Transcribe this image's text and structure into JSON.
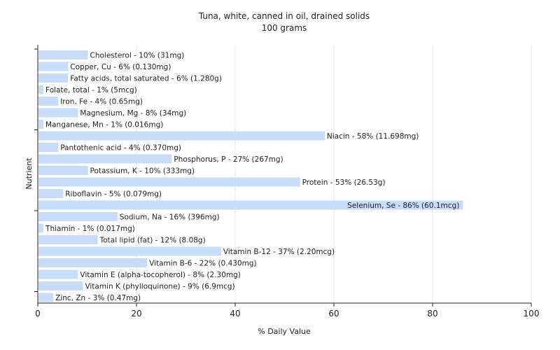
{
  "chart_data": {
    "type": "bar",
    "orientation": "horizontal",
    "title": "Tuna, white, canned in oil, drained solids",
    "subtitle": "100 grams",
    "xlabel": "% Daily Value",
    "ylabel": "Nutrient",
    "xlim": [
      0,
      100
    ],
    "xticks": [
      0,
      20,
      40,
      60,
      80,
      100
    ],
    "grid": true,
    "bar_color": "#c6dcf8",
    "categories": [
      "Cholesterol",
      "Copper, Cu",
      "Fatty acids, total saturated",
      "Folate, total",
      "Iron, Fe",
      "Magnesium, Mg",
      "Manganese, Mn",
      "Niacin",
      "Pantothenic acid",
      "Phosphorus, P",
      "Potassium, K",
      "Protein",
      "Riboflavin",
      "Selenium, Se",
      "Sodium, Na",
      "Thiamin",
      "Total lipid (fat)",
      "Vitamin B-12",
      "Vitamin B-6",
      "Vitamin E (alpha-tocopherol)",
      "Vitamin K (phylloquinone)",
      "Zinc, Zn"
    ],
    "values": [
      10,
      6,
      6,
      1,
      4,
      8,
      1,
      58,
      4,
      27,
      10,
      53,
      5,
      86,
      16,
      1,
      12,
      37,
      22,
      8,
      9,
      3
    ],
    "bar_labels": [
      "Cholesterol - 10% (31mg)",
      "Copper, Cu - 6% (0.130mg)",
      "Fatty acids, total saturated - 6% (1.280g)",
      "Folate, total - 1% (5mcg)",
      "Iron, Fe - 4% (0.65mg)",
      "Magnesium, Mg - 8% (34mg)",
      "Manganese, Mn - 1% (0.016mg)",
      "Niacin - 58% (11.698mg)",
      "Pantothenic acid - 4% (0.370mg)",
      "Phosphorus, P - 27% (267mg)",
      "Potassium, K - 10% (333mg)",
      "Protein - 53% (26.53g)",
      "Riboflavin - 5% (0.079mg)",
      "Selenium, Se - 86% (60.1mcg)",
      "Sodium, Na - 16% (396mg)",
      "Thiamin - 1% (0.017mg)",
      "Total lipid (fat) - 12% (8.08g)",
      "Vitamin B-12 - 37% (2.20mcg)",
      "Vitamin B-6 - 22% (0.430mg)",
      "Vitamin E (alpha-tocopherol) - 8% (2.30mg)",
      "Vitamin K (phylloquinone) - 9% (6.9mcg)",
      "Zinc, Zn - 3% (0.47mg)"
    ]
  }
}
